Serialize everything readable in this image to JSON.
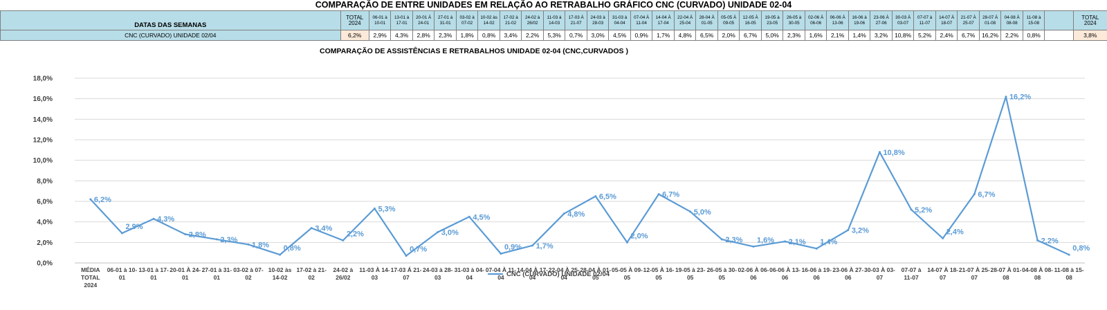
{
  "header": {
    "title": "COMPARAÇÃO DE ENTRE UNIDADES EM RELAÇÃO AO RETRABALHO GRÁFICO CNC (CURVADO) UNIDADE 02-04"
  },
  "table": {
    "label_header": "DATAS DAS SEMANAS",
    "row_label": "CNC (CURVADO) UNIDADE 02/04",
    "total_first": {
      "line1": "TOTAL",
      "line2": "2024",
      "value": "6,2%"
    },
    "weeks": [
      {
        "l1": "06-01 à",
        "l2": "10-01",
        "v": "2,9%"
      },
      {
        "l1": "13-01 à",
        "l2": "17-01",
        "v": "4,3%"
      },
      {
        "l1": "20-01 À",
        "l2": "24-01",
        "v": "2,8%"
      },
      {
        "l1": "27-01 à",
        "l2": "31-01",
        "v": "2,3%"
      },
      {
        "l1": "03-02 à",
        "l2": "07-02",
        "v": "1,8%"
      },
      {
        "l1": "10-02 às",
        "l2": "14-02",
        "v": "0,8%"
      },
      {
        "l1": "17-02 à",
        "l2": "21-02",
        "v": "3,4%"
      },
      {
        "l1": "24-02 à",
        "l2": "26/02",
        "v": "2,2%"
      },
      {
        "l1": "11-03 à",
        "l2": "14-03",
        "v": "5,3%"
      },
      {
        "l1": "17-03 Á",
        "l2": "21-07",
        "v": "0,7%"
      },
      {
        "l1": "24-03 à",
        "l2": "28-03",
        "v": "3,0%"
      },
      {
        "l1": "31-03 à",
        "l2": "04-04",
        "v": "4,5%"
      },
      {
        "l1": "07-04 À",
        "l2": "11-04",
        "v": "0,9%"
      },
      {
        "l1": "14-04 À",
        "l2": "17-04",
        "v": "1,7%"
      },
      {
        "l1": "22-04 À",
        "l2": "25-04",
        "v": "4,8%"
      },
      {
        "l1": "28-04 À",
        "l2": "01-05",
        "v": "6,5%"
      },
      {
        "l1": "05-05 À",
        "l2": "09-05",
        "v": "2,0%"
      },
      {
        "l1": "12-05 À",
        "l2": "16-05",
        "v": "6,7%"
      },
      {
        "l1": "19-05 à",
        "l2": "23-05",
        "v": "5,0%"
      },
      {
        "l1": "26-05 à",
        "l2": "30-05",
        "v": "2,3%"
      },
      {
        "l1": "02-06 À",
        "l2": "06-06",
        "v": "1,6%"
      },
      {
        "l1": "06-06 À",
        "l2": "13-06",
        "v": "2,1%"
      },
      {
        "l1": "16-06 à",
        "l2": "19-06",
        "v": "1,4%"
      },
      {
        "l1": "23-06 À",
        "l2": "27-06",
        "v": "3,2%"
      },
      {
        "l1": "30-03 À",
        "l2": "03-07",
        "v": "10,8%"
      },
      {
        "l1": "07-07 à",
        "l2": "11-07",
        "v": "5,2%"
      },
      {
        "l1": "14-07 À",
        "l2": "18-07",
        "v": "2,4%"
      },
      {
        "l1": "21-07 À",
        "l2": "25-07",
        "v": "6,7%"
      },
      {
        "l1": "28-07 À",
        "l2": "01-08",
        "v": "16,2%"
      },
      {
        "l1": "04-08 À",
        "l2": "08-08",
        "v": "2,2%"
      },
      {
        "l1": "11-08 à",
        "l2": "15-08",
        "v": "0,8%"
      }
    ],
    "total_last": {
      "line1": "TOTAL",
      "line2": "2024",
      "value": "3,8%"
    }
  },
  "colors": {
    "line": "#5b9bd5",
    "header_fill": "#b7dde8",
    "total_fill": "#fde9d9",
    "grid": "#d9d9d9"
  },
  "chart_data": {
    "type": "line",
    "title": "COMPARAÇÃO DE ASSISTÊNCIAS E RETRABALHOS UNIDADE 02-04  (CNC,CURVADOS )",
    "xlabel": "",
    "ylabel": "",
    "ylim": [
      0,
      18
    ],
    "y_ticks": [
      "0,0%",
      "2,0%",
      "4,0%",
      "6,0%",
      "8,0%",
      "10,0%",
      "12,0%",
      "14,0%",
      "16,0%",
      "18,0%"
    ],
    "grid": true,
    "legend_position": "bottom",
    "categories": [
      [
        "MÉDIA",
        "TOTAL",
        "2024"
      ],
      [
        "06-01 à 10-",
        "01"
      ],
      [
        "13-01 à 17-",
        "01"
      ],
      [
        "20-01 À 24-",
        "01"
      ],
      [
        "27-01 à 31-",
        "01"
      ],
      [
        "03-02 à 07-",
        "02"
      ],
      [
        "10-02 às",
        "14-02"
      ],
      [
        "17-02 à 21-",
        "02"
      ],
      [
        "24-02 à",
        "26/02"
      ],
      [
        "11-03 À 14-",
        "03"
      ],
      [
        "17-03 Á 21-",
        "07"
      ],
      [
        "24-03 à 28-",
        "03"
      ],
      [
        "31-03 à 04-",
        "04"
      ],
      [
        "07-04 À 11-",
        "04"
      ],
      [
        "14-04 À 17-",
        "04"
      ],
      [
        "22-04 À 25-",
        "04"
      ],
      [
        "28-04 À 01-",
        "05"
      ],
      [
        "05-05 À 09-",
        "05"
      ],
      [
        "12-05 À 16-",
        "05"
      ],
      [
        "19-05 à 23-",
        "05"
      ],
      [
        "26-05 à 30-",
        "05"
      ],
      [
        "02-06 À 06-",
        "06"
      ],
      [
        "06-06 À 13-",
        "06"
      ],
      [
        "16-06 à 19-",
        "06"
      ],
      [
        "23-06 À 27-",
        "06"
      ],
      [
        "30-03 À 03-",
        "07"
      ],
      [
        "07-07 à",
        "11-07"
      ],
      [
        "14-07 À 18-",
        "07"
      ],
      [
        "21-07 À 25-",
        "07"
      ],
      [
        "28-07 À 01-",
        "08"
      ],
      [
        "04-08 À 08-",
        "08"
      ],
      [
        "11-08 à 15-",
        "08"
      ]
    ],
    "series": [
      {
        "name": "CNC (CURVADO) UNIDADE 02/04",
        "values": [
          6.2,
          2.9,
          4.3,
          2.8,
          2.3,
          1.8,
          0.8,
          3.4,
          2.2,
          5.3,
          0.7,
          3.0,
          4.5,
          0.9,
          1.7,
          4.8,
          6.5,
          2.0,
          6.7,
          5.0,
          2.3,
          1.6,
          2.1,
          1.4,
          3.2,
          10.8,
          5.2,
          2.4,
          6.7,
          16.2,
          2.2,
          0.8
        ],
        "labels": [
          "6,2%",
          "2,9%",
          "4,3%",
          "2,8%",
          "2,3%",
          "1,8%",
          "0,8%",
          "3,4%",
          "2,2%",
          "5,3%",
          "0,7%",
          "3,0%",
          "4,5%",
          "0,9%",
          "1,7%",
          "4,8%",
          "6,5%",
          "2,0%",
          "6,7%",
          "5,0%",
          "2,3%",
          "1,6%",
          "2,1%",
          "1,4%",
          "3,2%",
          "10,8%",
          "5,2%",
          "2,4%",
          "6,7%",
          "16,2%",
          "2,2%",
          "0,8%"
        ]
      }
    ]
  }
}
